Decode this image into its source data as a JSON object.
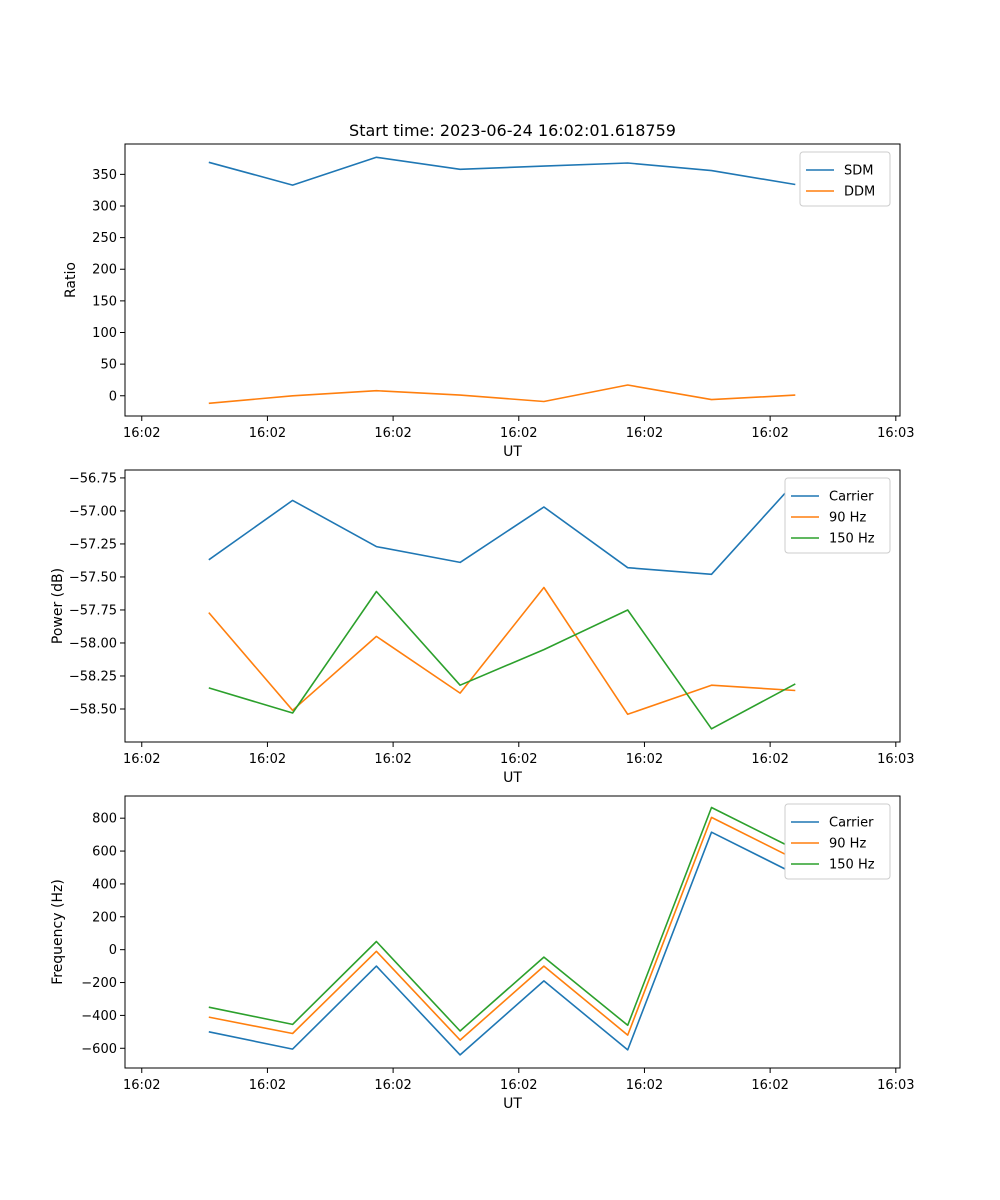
{
  "figure": {
    "background": "#ffffff"
  },
  "chart_data": [
    {
      "type": "line",
      "title": "Start time: 2023-06-24 16:02:01.618759",
      "xlabel": "UT",
      "ylabel": "Ratio",
      "x": [
        1,
        2,
        3,
        4,
        5,
        6,
        7,
        8
      ],
      "xlim": [
        0,
        9.25
      ],
      "xticks": [
        {
          "value": 0.2,
          "label": "16:02"
        },
        {
          "value": 1.7,
          "label": "16:02"
        },
        {
          "value": 3.2,
          "label": "16:02"
        },
        {
          "value": 4.7,
          "label": "16:02"
        },
        {
          "value": 6.2,
          "label": "16:02"
        },
        {
          "value": 7.7,
          "label": "16:02"
        },
        {
          "value": 9.2,
          "label": "16:03"
        }
      ],
      "ylim": [
        -32,
        398
      ],
      "yticks": [
        0,
        50,
        100,
        150,
        200,
        250,
        300,
        350
      ],
      "legend": "top-right",
      "series": [
        {
          "name": "SDM",
          "color": "#1f77b4",
          "values": [
            369,
            333,
            377,
            358,
            363,
            368,
            356,
            334
          ]
        },
        {
          "name": "DDM",
          "color": "#ff7f0e",
          "values": [
            -12,
            0,
            8,
            1,
            -9,
            17,
            -6,
            1
          ]
        }
      ]
    },
    {
      "type": "line",
      "title": "",
      "xlabel": "UT",
      "ylabel": "Power (dB)",
      "x": [
        1,
        2,
        3,
        4,
        5,
        6,
        7,
        8
      ],
      "xlim": [
        0,
        9.25
      ],
      "xticks": [
        {
          "value": 0.2,
          "label": "16:02"
        },
        {
          "value": 1.7,
          "label": "16:02"
        },
        {
          "value": 3.2,
          "label": "16:02"
        },
        {
          "value": 4.7,
          "label": "16:02"
        },
        {
          "value": 6.2,
          "label": "16:02"
        },
        {
          "value": 7.7,
          "label": "16:02"
        },
        {
          "value": 9.2,
          "label": "16:03"
        }
      ],
      "ylim": [
        -58.75,
        -56.69
      ],
      "yticks": [
        -58.5,
        -58.25,
        -58.0,
        -57.75,
        -57.5,
        -57.25,
        -57.0,
        -56.75
      ],
      "ytick_labels": [
        "−58.50",
        "−58.25",
        "−58.00",
        "−57.75",
        "−57.50",
        "−57.25",
        "−57.00",
        "−56.75"
      ],
      "legend": "top-right",
      "series": [
        {
          "name": "Carrier",
          "color": "#1f77b4",
          "values": [
            -57.37,
            -56.92,
            -57.27,
            -57.39,
            -56.97,
            -57.43,
            -57.48,
            -56.78
          ]
        },
        {
          "name": "90 Hz",
          "color": "#ff7f0e",
          "values": [
            -57.77,
            -58.51,
            -57.95,
            -58.38,
            -57.58,
            -58.54,
            -58.32,
            -58.36
          ]
        },
        {
          "name": "150 Hz",
          "color": "#2ca02c",
          "values": [
            -58.34,
            -58.53,
            -57.61,
            -58.32,
            -58.05,
            -57.75,
            -58.65,
            -58.31
          ]
        }
      ]
    },
    {
      "type": "line",
      "title": "",
      "xlabel": "UT",
      "ylabel": "Frequency (Hz)",
      "x": [
        1,
        2,
        3,
        4,
        5,
        6,
        7,
        8
      ],
      "xlim": [
        0,
        9.25
      ],
      "xticks": [
        {
          "value": 0.2,
          "label": "16:02"
        },
        {
          "value": 1.7,
          "label": "16:02"
        },
        {
          "value": 3.2,
          "label": "16:02"
        },
        {
          "value": 4.7,
          "label": "16:02"
        },
        {
          "value": 6.2,
          "label": "16:02"
        },
        {
          "value": 7.7,
          "label": "16:02"
        },
        {
          "value": 9.2,
          "label": "16:03"
        }
      ],
      "ylim": [
        -720,
        935
      ],
      "yticks": [
        -600,
        -400,
        -200,
        0,
        200,
        400,
        600,
        800
      ],
      "ytick_labels": [
        "−600",
        "−400",
        "−200",
        "0",
        "200",
        "400",
        "600",
        "800"
      ],
      "legend": "top-right",
      "series": [
        {
          "name": "Carrier",
          "color": "#1f77b4",
          "values": [
            -500,
            -605,
            -100,
            -640,
            -190,
            -610,
            715,
            460
          ]
        },
        {
          "name": "90 Hz",
          "color": "#ff7f0e",
          "values": [
            -410,
            -510,
            -10,
            -550,
            -100,
            -520,
            805,
            550
          ]
        },
        {
          "name": "150 Hz",
          "color": "#2ca02c",
          "values": [
            -350,
            -455,
            50,
            -495,
            -45,
            -460,
            865,
            610
          ]
        }
      ]
    }
  ]
}
